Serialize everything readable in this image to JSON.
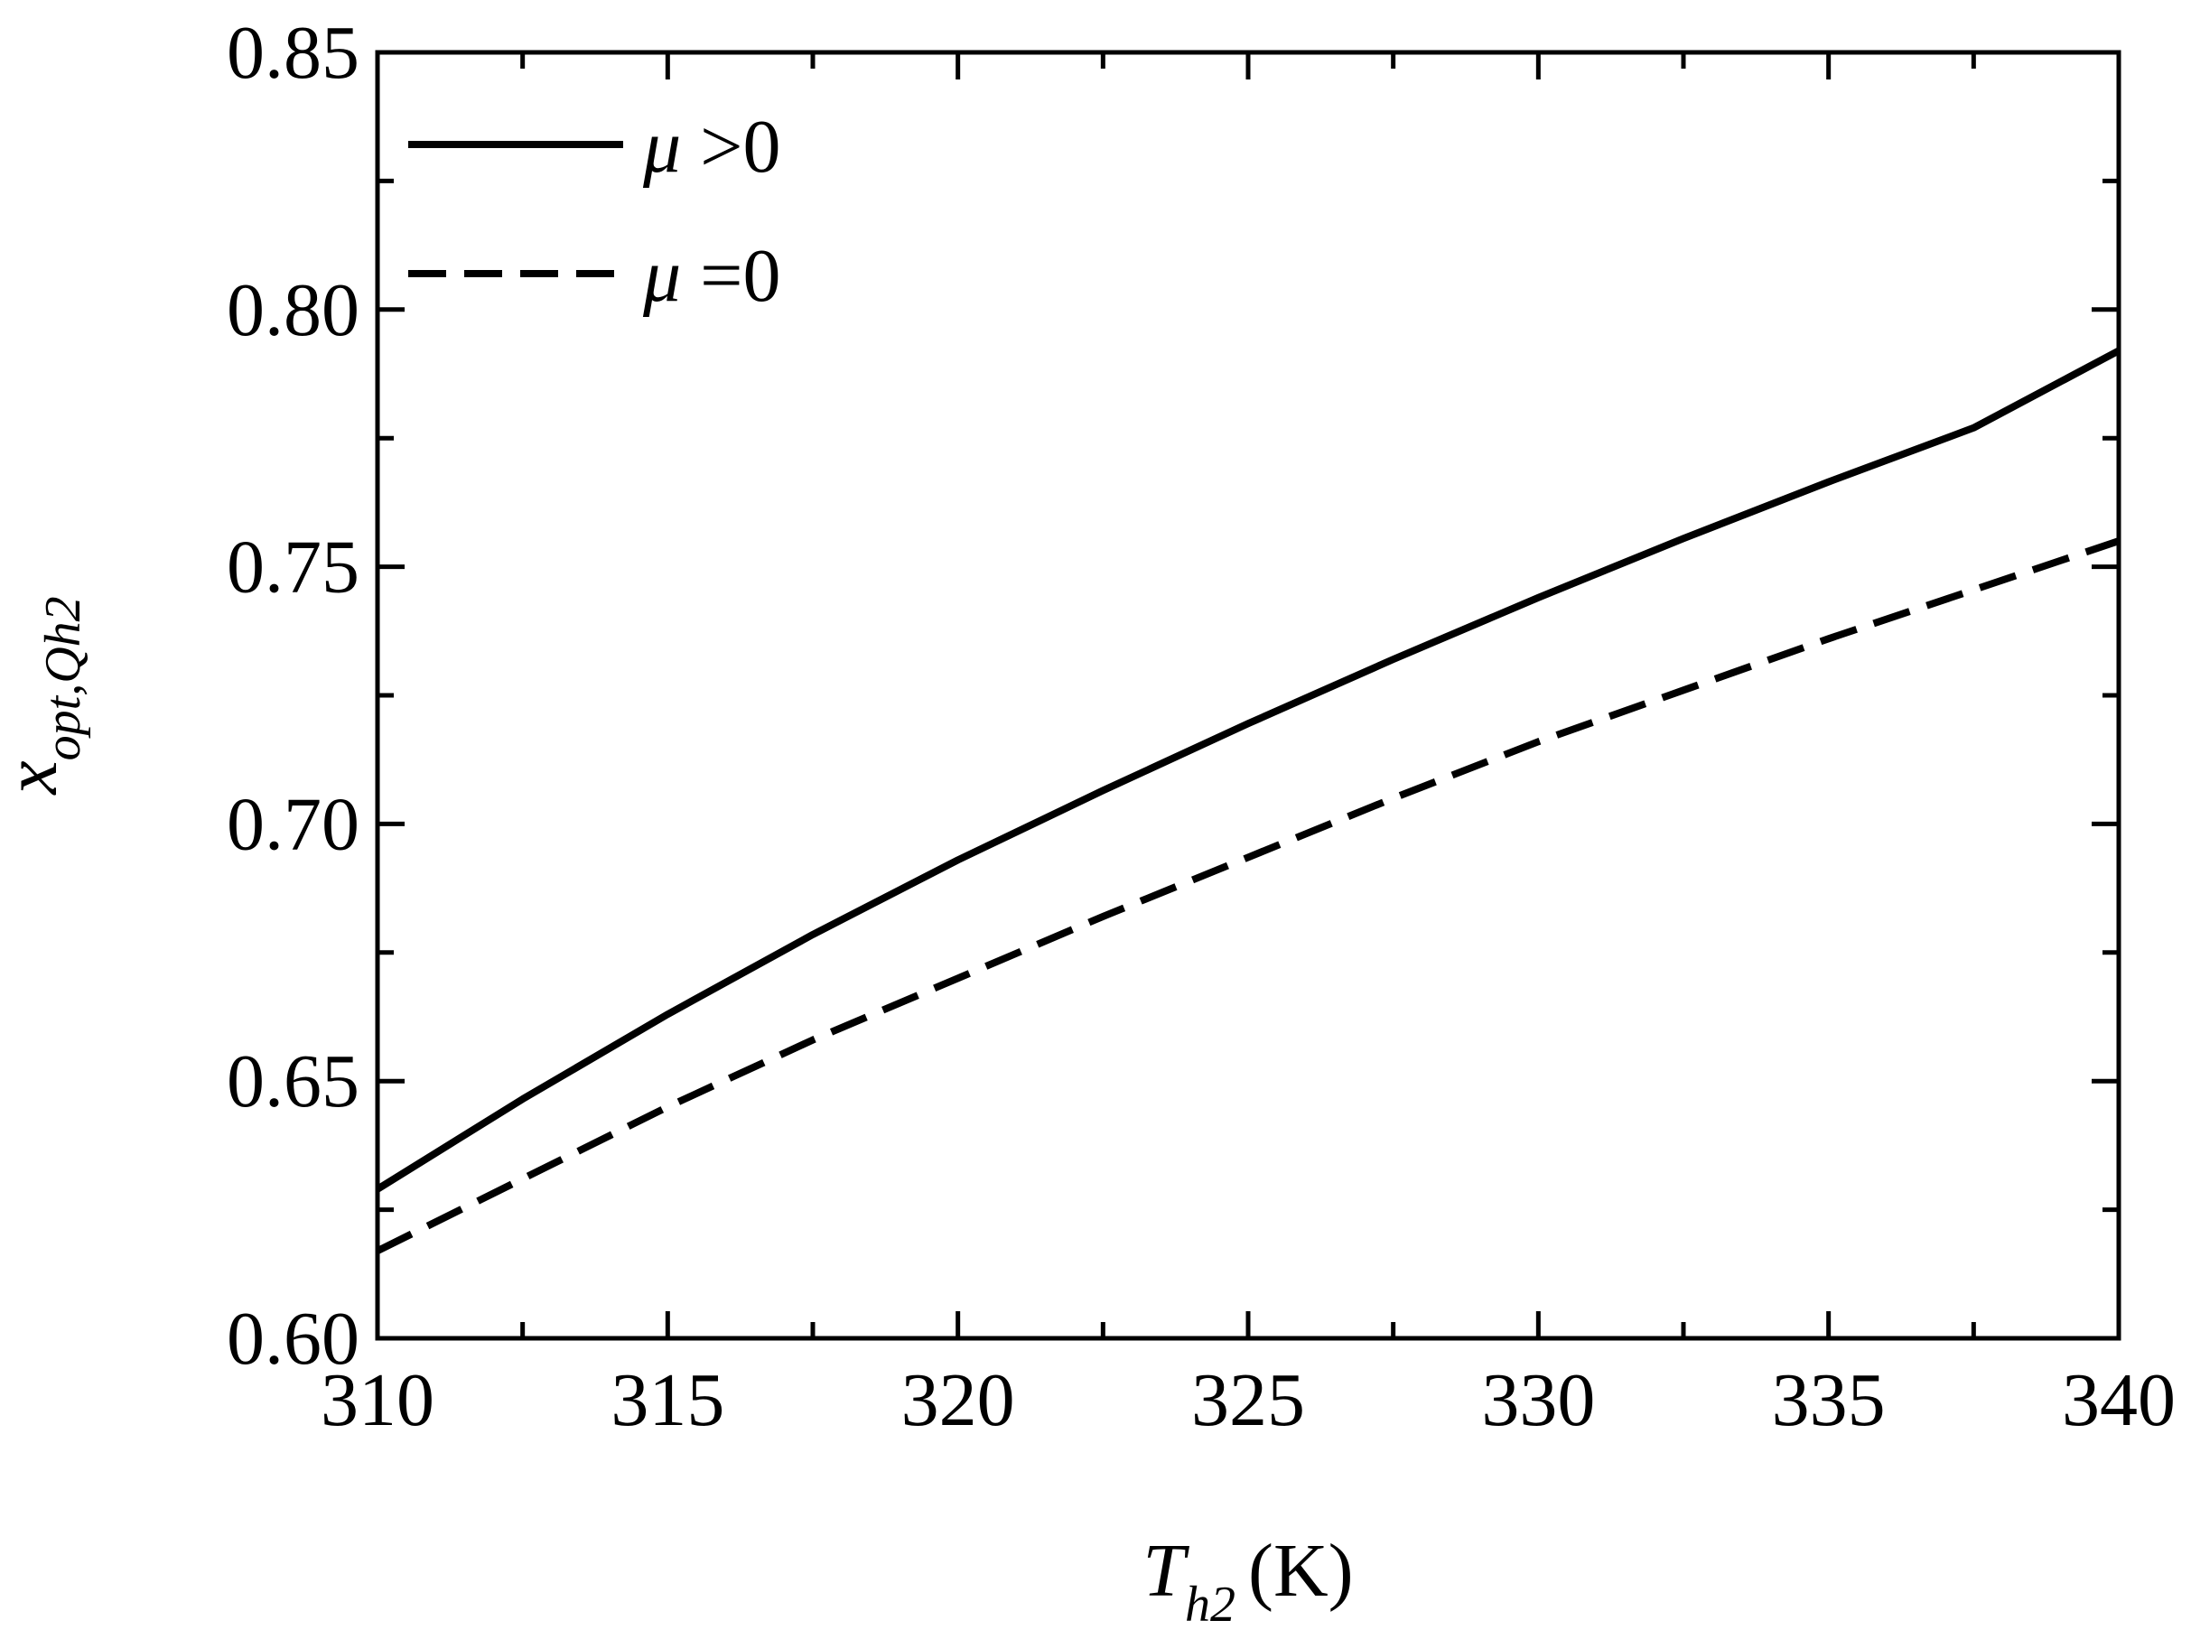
{
  "chart_data": {
    "type": "line",
    "title": "",
    "xlabel": {
      "main": "T",
      "sub": "h2",
      "unit": "(K)"
    },
    "ylabel": {
      "main": "x",
      "sub": "opt,Qh2"
    },
    "xlim": [
      310,
      340
    ],
    "ylim": [
      0.6,
      0.85
    ],
    "xticks": [
      310,
      315,
      320,
      325,
      330,
      335,
      340
    ],
    "xtick_labels": [
      "310",
      "315",
      "320",
      "325",
      "330",
      "335",
      "340"
    ],
    "yticks": [
      0.6,
      0.65,
      0.7,
      0.75,
      0.8,
      0.85
    ],
    "ytick_labels": [
      "0.60",
      "0.65",
      "0.70",
      "0.75",
      "0.80",
      "0.85"
    ],
    "grid": false,
    "legend_position": "top-left",
    "x": [
      310,
      312.5,
      315,
      317.5,
      320,
      322.5,
      325,
      327.5,
      330,
      332.5,
      335,
      337.5,
      340
    ],
    "series": [
      {
        "name": "μ >0",
        "name_symbol": "μ",
        "name_rest": " >0",
        "style": "solid",
        "color": "#000000",
        "values": [
          0.629,
          0.6465,
          0.663,
          0.6785,
          0.693,
          0.7065,
          0.7195,
          0.732,
          0.744,
          0.7555,
          0.7665,
          0.777,
          0.792
        ]
      },
      {
        "name": "μ =0",
        "name_symbol": "μ",
        "name_rest": " =0",
        "style": "dashed",
        "color": "#000000",
        "values": [
          0.617,
          0.631,
          0.645,
          0.658,
          0.67,
          0.682,
          0.6935,
          0.705,
          0.716,
          0.726,
          0.736,
          0.7455,
          0.755
        ]
      }
    ]
  }
}
